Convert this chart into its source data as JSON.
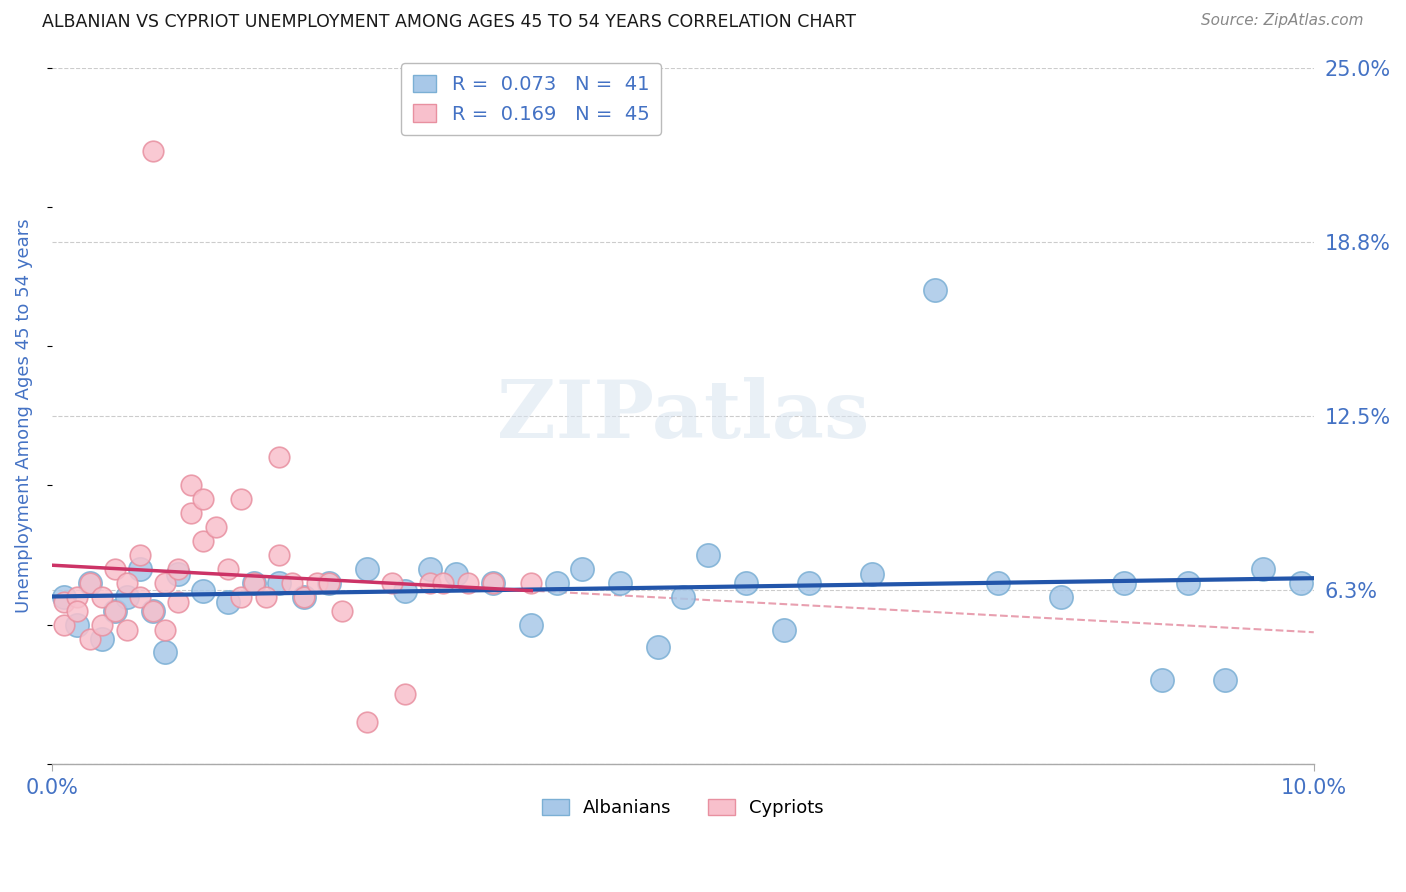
{
  "title": "ALBANIAN VS CYPRIOT UNEMPLOYMENT AMONG AGES 45 TO 54 YEARS CORRELATION CHART",
  "source": "Source: ZipAtlas.com",
  "ylabel": "Unemployment Among Ages 45 to 54 years",
  "xlim": [
    0.0,
    0.1
  ],
  "ylim": [
    0.0,
    0.25
  ],
  "yticks": [
    0.0,
    0.0625,
    0.125,
    0.1875,
    0.25
  ],
  "ytick_labels": [
    "",
    "6.3%",
    "12.5%",
    "18.8%",
    "25.0%"
  ],
  "xticks": [
    0.0,
    0.1
  ],
  "xtick_labels": [
    "0.0%",
    "10.0%"
  ],
  "title_color": "#1a1a1a",
  "source_color": "#888888",
  "axis_label_color": "#4472c4",
  "tick_label_color": "#4472c4",
  "grid_color": "#cccccc",
  "watermark": "ZIPatlas",
  "watermark_color": "#d8e4f0",
  "legend_r1": "R =  0.073",
  "legend_n1": "N =  41",
  "legend_r2": "R =  0.169",
  "legend_n2": "N =  45",
  "albanian_color": "#a8c8e8",
  "albanian_edge_color": "#7bafd4",
  "cypriot_color": "#f8c0cc",
  "cypriot_edge_color": "#e890a0",
  "albanian_trend_color": "#2255aa",
  "cypriot_trend_color": "#cc3366",
  "cypriot_trend2_color": "#e8a0b0",
  "albanian_x": [
    0.001,
    0.002,
    0.003,
    0.004,
    0.005,
    0.006,
    0.007,
    0.008,
    0.009,
    0.01,
    0.012,
    0.014,
    0.016,
    0.018,
    0.02,
    0.022,
    0.025,
    0.028,
    0.03,
    0.032,
    0.035,
    0.038,
    0.04,
    0.042,
    0.045,
    0.048,
    0.05,
    0.052,
    0.055,
    0.058,
    0.06,
    0.065,
    0.07,
    0.075,
    0.08,
    0.085,
    0.088,
    0.09,
    0.093,
    0.096,
    0.099
  ],
  "albanian_y": [
    0.06,
    0.05,
    0.065,
    0.045,
    0.055,
    0.06,
    0.07,
    0.055,
    0.04,
    0.068,
    0.062,
    0.058,
    0.065,
    0.065,
    0.06,
    0.065,
    0.07,
    0.062,
    0.07,
    0.068,
    0.065,
    0.05,
    0.065,
    0.07,
    0.065,
    0.042,
    0.06,
    0.075,
    0.065,
    0.048,
    0.065,
    0.068,
    0.17,
    0.065,
    0.06,
    0.065,
    0.03,
    0.065,
    0.03,
    0.07,
    0.065
  ],
  "cypriot_x": [
    0.001,
    0.001,
    0.002,
    0.002,
    0.003,
    0.003,
    0.004,
    0.004,
    0.005,
    0.005,
    0.006,
    0.006,
    0.007,
    0.007,
    0.008,
    0.008,
    0.009,
    0.009,
    0.01,
    0.01,
    0.011,
    0.011,
    0.012,
    0.012,
    0.013,
    0.014,
    0.015,
    0.015,
    0.016,
    0.017,
    0.018,
    0.018,
    0.019,
    0.02,
    0.021,
    0.022,
    0.023,
    0.025,
    0.027,
    0.028,
    0.03,
    0.031,
    0.033,
    0.035,
    0.038
  ],
  "cypriot_y": [
    0.05,
    0.058,
    0.06,
    0.055,
    0.065,
    0.045,
    0.06,
    0.05,
    0.07,
    0.055,
    0.065,
    0.048,
    0.075,
    0.06,
    0.22,
    0.055,
    0.065,
    0.048,
    0.07,
    0.058,
    0.09,
    0.1,
    0.08,
    0.095,
    0.085,
    0.07,
    0.06,
    0.095,
    0.065,
    0.06,
    0.075,
    0.11,
    0.065,
    0.06,
    0.065,
    0.065,
    0.055,
    0.015,
    0.065,
    0.025,
    0.065,
    0.065,
    0.065,
    0.065,
    0.065
  ]
}
